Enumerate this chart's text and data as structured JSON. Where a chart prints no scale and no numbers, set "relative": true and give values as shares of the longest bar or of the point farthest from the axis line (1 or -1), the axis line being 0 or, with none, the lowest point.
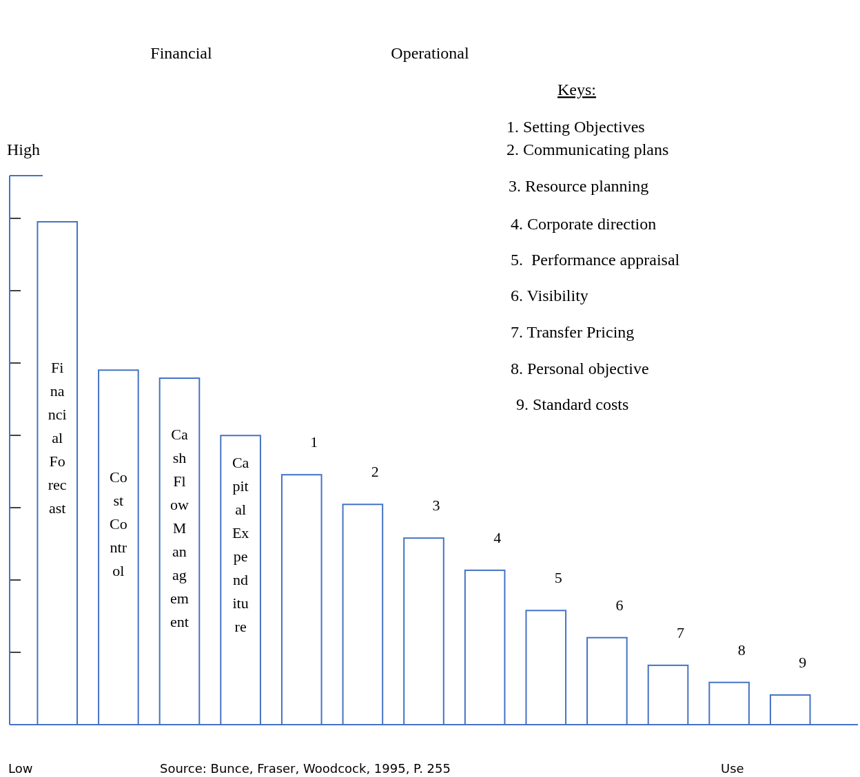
{
  "chart_data": {
    "type": "bar",
    "relative": true,
    "xlabel": "Use",
    "legend_title": "Keys:",
    "categories": [
      "Financial Forecast",
      "Cost Control",
      "Cash Flow Management",
      "Capital Expenditure",
      "1",
      "2",
      "3",
      "4",
      "5",
      "6",
      "7",
      "8",
      "9"
    ],
    "values": [
      1,
      0.705,
      0.689,
      0.575,
      0.497,
      0.438,
      0.371,
      0.307,
      0.227,
      0.173,
      0.118,
      0.084,
      0.059
    ],
    "color": "#4472c4",
    "annotations": [
      "Financial",
      "Operational",
      "1. Setting Objectives",
      "2. Communicating plans",
      "3. Resource planning",
      "4. Corporate direction",
      "5.  Performance appraisal",
      "6. Visibility",
      "7. Transfer Pricing",
      "8. Personal objective",
      "9. Standard costs",
      "High",
      "Low",
      "Source: Bunce, Fraser, Woodcock, 1995, P. 255"
    ]
  }
}
